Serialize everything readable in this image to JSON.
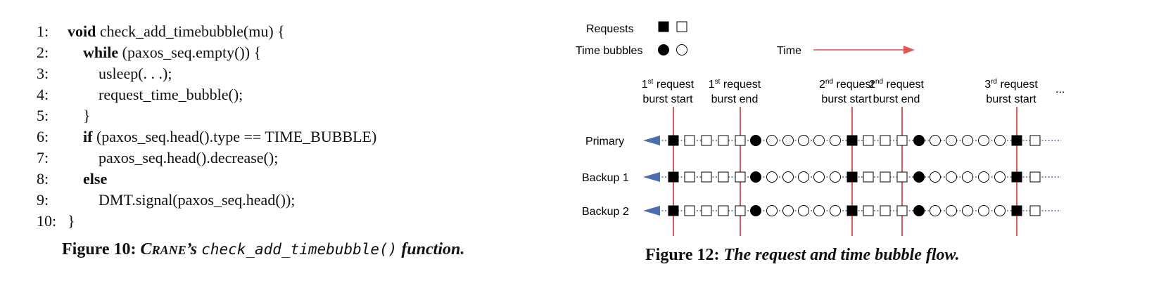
{
  "code": {
    "lines": [
      {
        "num": "1:",
        "kw": "void",
        "text": "check_add_timebubble(mu)  {",
        "indent": 0
      },
      {
        "num": "2:",
        "kw": "while",
        "text": "(paxos_seq.empty())  {",
        "indent": 1
      },
      {
        "num": "3:",
        "kw": "",
        "text": "usleep(. . .);",
        "indent": 2
      },
      {
        "num": "4:",
        "kw": "",
        "text": "request_time_bubble();",
        "indent": 2
      },
      {
        "num": "5:",
        "kw": "",
        "text": "}",
        "indent": 1
      },
      {
        "num": "6:",
        "kw": "if",
        "text": "(paxos_seq.head().type  ==  TIME_BUBBLE)",
        "indent": 1
      },
      {
        "num": "7:",
        "kw": "",
        "text": "paxos_seq.head().decrease();",
        "indent": 2
      },
      {
        "num": "8:",
        "kw": "else",
        "text": "",
        "indent": 1
      },
      {
        "num": "9:",
        "kw": "",
        "text": "DMT.signal(paxos_seq.head());",
        "indent": 2
      },
      {
        "num": "10:",
        "kw": "",
        "text": "}",
        "indent": 0
      }
    ]
  },
  "figure10": {
    "label": "Figure 10:",
    "name_c": "C",
    "name_rest": "RANE",
    "possessive": "’s",
    "func": "check_add_timebubble()",
    "suffix": "function."
  },
  "figure12": {
    "label": "Figure 12:",
    "title": "The request and time bubble flow."
  },
  "diagram": {
    "legend": {
      "requests": "Requests",
      "time_bubbles": "Time bubbles",
      "time": "Time"
    },
    "markers": [
      {
        "ord": "1",
        "sup": "st",
        "line1": " request",
        "line2": "burst start"
      },
      {
        "ord": "1",
        "sup": "st",
        "line1": " request",
        "line2": "burst end"
      },
      {
        "ord": "2",
        "sup": "nd",
        "line1": " request",
        "line2": "burst start"
      },
      {
        "ord": "2",
        "sup": "nd",
        "line1": " request",
        "line2": "burst end"
      },
      {
        "ord": "3",
        "sup": "rd",
        "line1": " request",
        "line2": "burst start"
      }
    ],
    "ellipsis": "...",
    "rows": [
      "Primary",
      "Backup 1",
      "Backup 2"
    ],
    "sequence": [
      "RF",
      "RO",
      "RO",
      "RO",
      "RO",
      "BF",
      "BO",
      "BO",
      "BO",
      "BO",
      "BO",
      "RF",
      "RO",
      "RO",
      "RO",
      "BF",
      "BO",
      "BO",
      "BO",
      "BO",
      "BO",
      "RF",
      "RO"
    ],
    "colors": {
      "marker_line": "#cc3333",
      "time_arrow": "#e05555",
      "row_arrow": "#4a6fb0",
      "dotted": "#2a4d9a"
    }
  }
}
